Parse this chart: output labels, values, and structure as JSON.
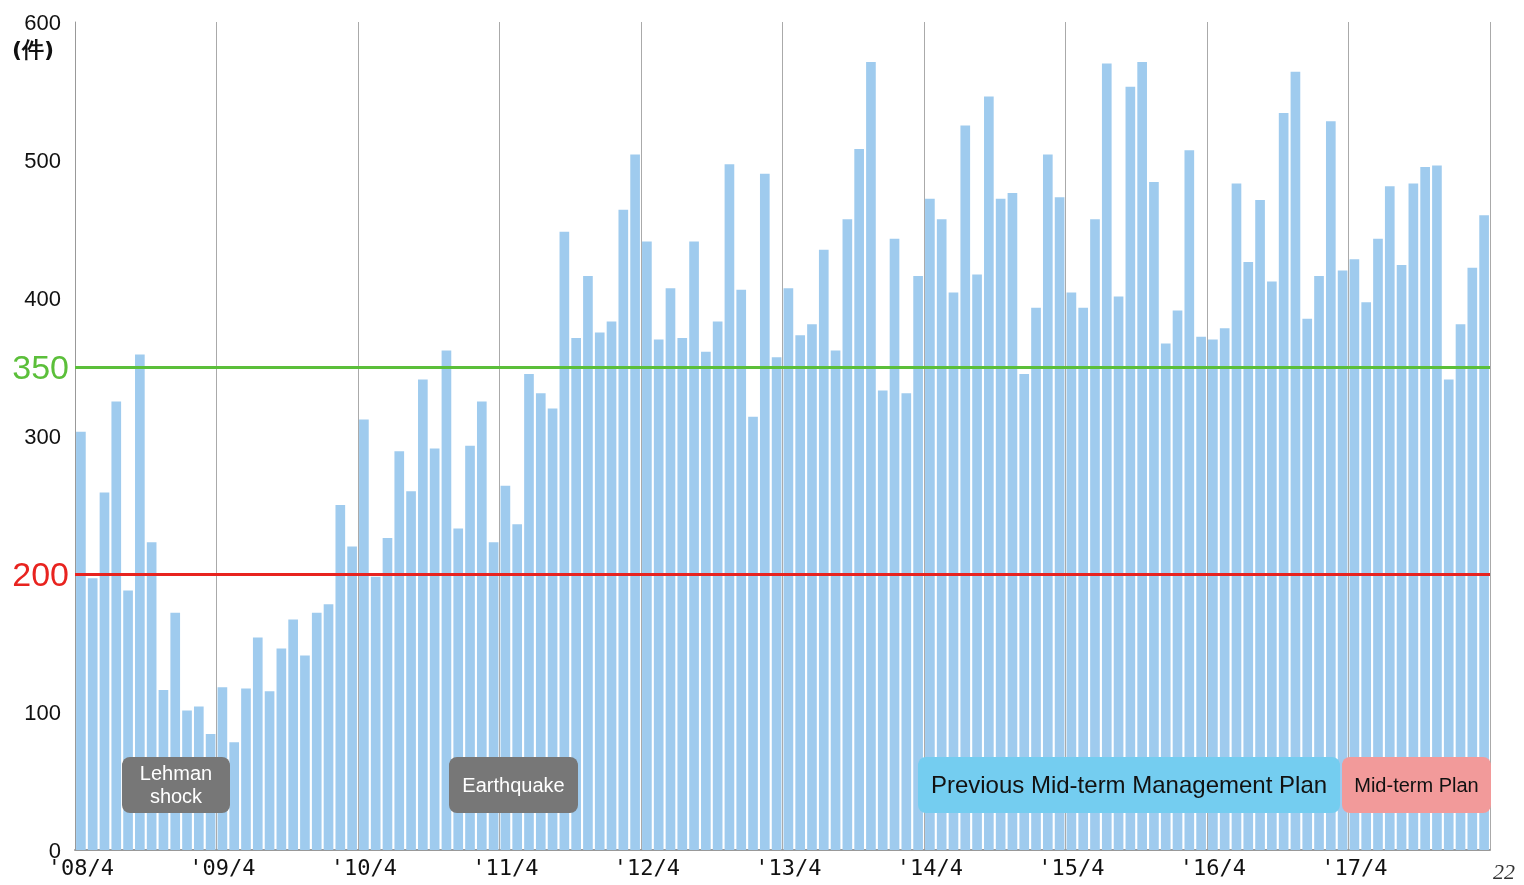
{
  "chart_data": {
    "type": "bar",
    "ylabel": "(件)",
    "categories": [
      "'08/4",
      null,
      null,
      null,
      null,
      null,
      null,
      null,
      null,
      null,
      null,
      null,
      "'09/4",
      null,
      null,
      null,
      null,
      null,
      null,
      null,
      null,
      null,
      null,
      null,
      "'10/4",
      null,
      null,
      null,
      null,
      null,
      null,
      null,
      null,
      null,
      null,
      null,
      "'11/4",
      null,
      null,
      null,
      null,
      null,
      null,
      null,
      null,
      null,
      null,
      null,
      "'12/4",
      null,
      null,
      null,
      null,
      null,
      null,
      null,
      null,
      null,
      null,
      null,
      "'13/4",
      null,
      null,
      null,
      null,
      null,
      null,
      null,
      null,
      null,
      null,
      null,
      "'14/4",
      null,
      null,
      null,
      null,
      null,
      null,
      null,
      null,
      null,
      null,
      null,
      "'15/4",
      null,
      null,
      null,
      null,
      null,
      null,
      null,
      null,
      null,
      null,
      null,
      "'16/4",
      null,
      null,
      null,
      null,
      null,
      null,
      null,
      null,
      null,
      null,
      null,
      "'17/4",
      null,
      null,
      null,
      null,
      null,
      null,
      null,
      null,
      null,
      null,
      null
    ],
    "values": [
      303,
      197,
      259,
      325,
      188,
      359,
      223,
      116,
      172,
      101,
      104,
      84,
      118,
      78,
      117,
      154,
      115,
      146,
      167,
      141,
      172,
      178,
      250,
      220,
      312,
      198,
      226,
      289,
      260,
      341,
      291,
      362,
      233,
      293,
      325,
      223,
      264,
      236,
      345,
      331,
      320,
      448,
      371,
      416,
      375,
      383,
      464,
      504,
      441,
      370,
      407,
      371,
      441,
      361,
      383,
      497,
      406,
      314,
      490,
      357,
      407,
      373,
      381,
      435,
      362,
      457,
      508,
      571,
      333,
      443,
      331,
      416,
      472,
      457,
      404,
      525,
      417,
      546,
      472,
      476,
      345,
      393,
      504,
      473,
      404,
      393,
      457,
      570,
      401,
      553,
      571,
      484,
      367,
      391,
      507,
      372,
      370,
      378,
      483,
      426,
      471,
      412,
      534,
      564,
      385,
      416,
      528,
      420,
      428,
      397,
      443,
      481,
      424,
      483,
      495,
      496,
      341,
      381,
      422,
      460
    ],
    "color": "#9fcbee",
    "ylim": [
      0,
      600
    ],
    "yticks": [
      0,
      100,
      300,
      400,
      500,
      600
    ],
    "grid": "x",
    "ref_lines": [
      {
        "axis": "y",
        "value": 350,
        "label": "350",
        "color": "#5bbf3a",
        "line_style": "solid"
      },
      {
        "axis": "y",
        "value": 200,
        "label": "200",
        "color": "#e8231f",
        "line_style": "solid"
      }
    ],
    "annotations": [
      "Lehman shock",
      "Earthquake",
      "Previous Mid-term Management Plan",
      "Mid-term Plan",
      "22"
    ]
  }
}
